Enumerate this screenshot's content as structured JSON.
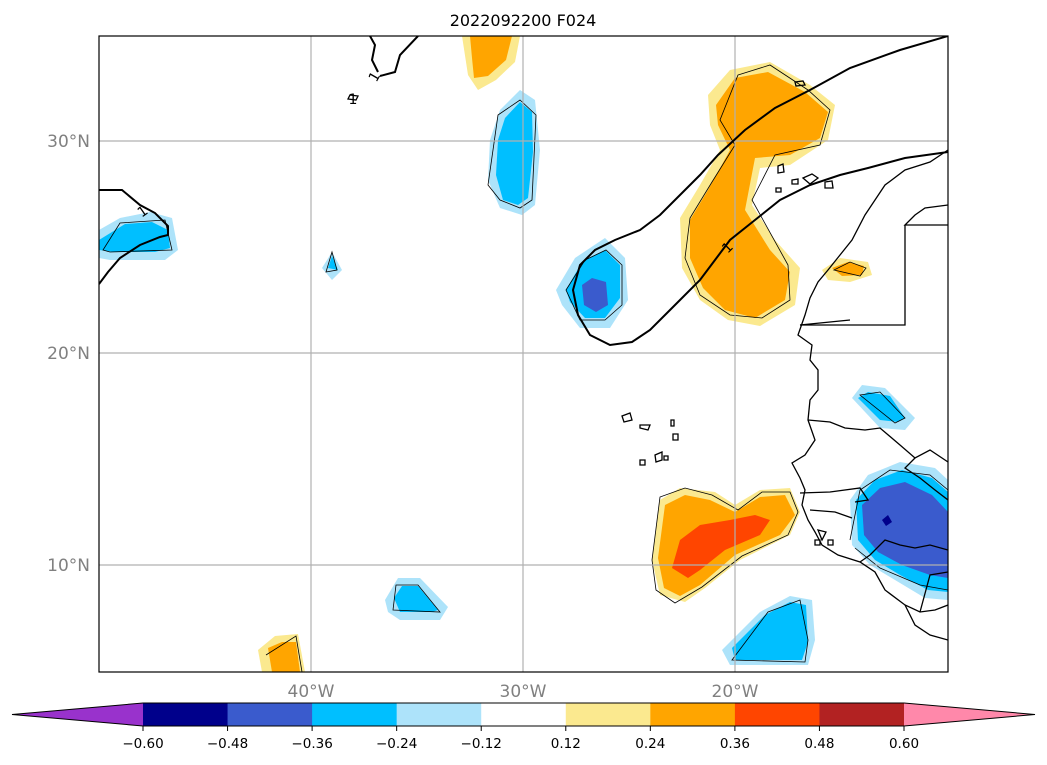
{
  "title": "2022092200 F024",
  "map": {
    "lat_labels": [
      "30°N",
      "20°N",
      "10°N"
    ],
    "lon_labels": [
      "40°W",
      "30°W",
      "20°W"
    ],
    "contour_label": "1"
  },
  "colorbar": {
    "levels": [
      "−0.60",
      "−0.48",
      "−0.36",
      "−0.24",
      "−0.12",
      "0.12",
      "0.24",
      "0.36",
      "0.48",
      "0.60"
    ],
    "colors": [
      "#9932cc",
      "#00008b",
      "#3a5bcd",
      "#00bfff",
      "#ade3fa",
      "#ffffff",
      "#fbe98f",
      "#ffa500",
      "#ff4500",
      "#b22222",
      "#ff88aa"
    ]
  },
  "colors": {
    "purple": "#9932cc",
    "navy": "#00008b",
    "royal": "#3a5bcd",
    "sky": "#00bfff",
    "lightblue": "#ade3fa",
    "lightyellow": "#fbe98f",
    "orange": "#ffa500",
    "redorange": "#ff4500"
  }
}
